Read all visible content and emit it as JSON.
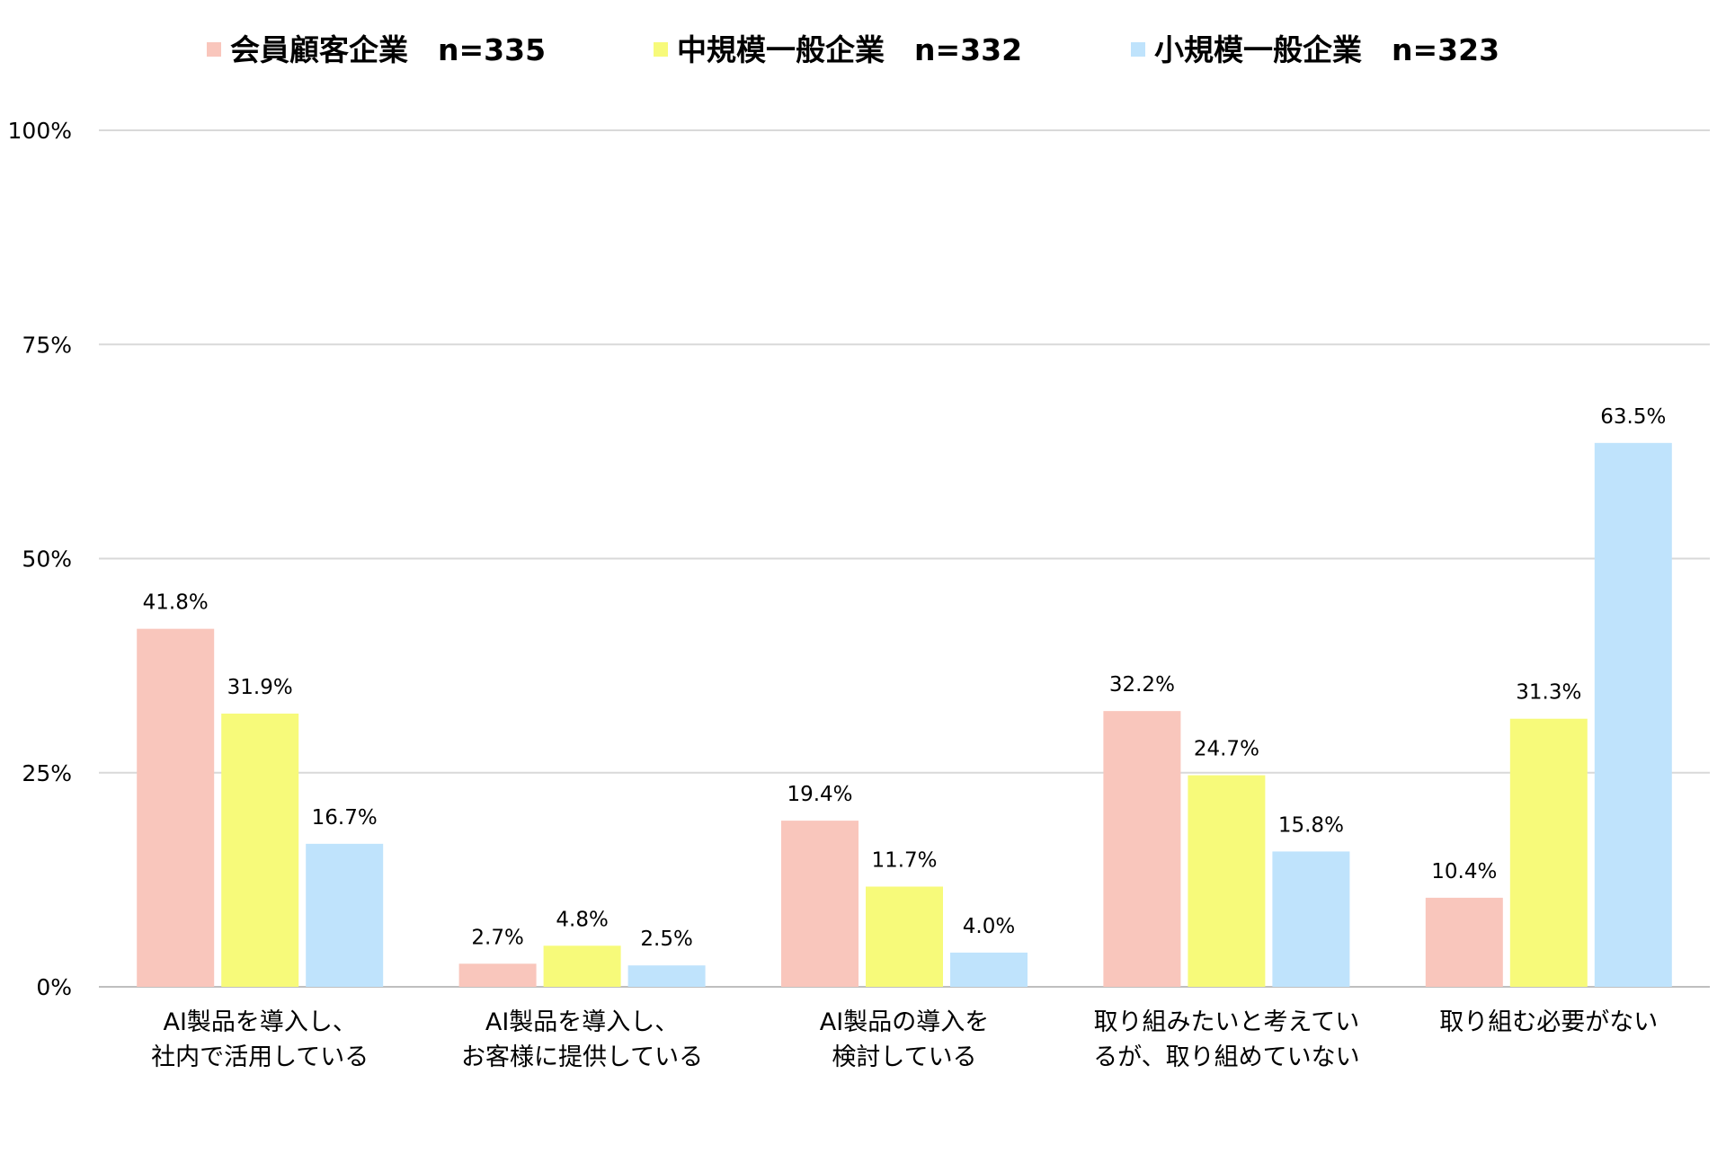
{
  "chart_data": {
    "type": "bar",
    "title": "",
    "xlabel": "",
    "ylabel": "",
    "ylim": [
      0,
      100
    ],
    "yticks": [
      "0%",
      "25%",
      "50%",
      "75%",
      "100%"
    ],
    "ytick_values": [
      0,
      25,
      50,
      75,
      100
    ],
    "grid": true,
    "legend_position": "top-center",
    "categories": [
      [
        "AI製品を導入し、",
        "社内で活用している"
      ],
      [
        "AI製品を導入し、",
        "お客様に提供している"
      ],
      [
        "AI製品の導入を",
        "検討している"
      ],
      [
        "取り組みたいと考えてい",
        "るが、取り組めていない"
      ],
      [
        "取り組む必要がない"
      ]
    ],
    "series": [
      {
        "name": "会員顧客企業　n=335",
        "color": "#F9C6BC",
        "values": [
          41.8,
          2.7,
          19.4,
          32.2,
          10.4
        ],
        "labels": [
          "41.8%",
          "2.7%",
          "19.4%",
          "32.2%",
          "10.4%"
        ]
      },
      {
        "name": "中規模一般企業　n=332",
        "color": "#F7FA7A",
        "values": [
          31.9,
          4.8,
          11.7,
          24.7,
          31.3
        ],
        "labels": [
          "31.9%",
          "4.8%",
          "11.7%",
          "24.7%",
          "31.3%"
        ]
      },
      {
        "name": "小規模一般企業　n=323",
        "color": "#BFE3FC",
        "values": [
          16.7,
          2.5,
          4.0,
          15.8,
          63.5
        ],
        "labels": [
          "16.7%",
          "2.5%",
          "4.0%",
          "15.8%",
          "63.5%"
        ]
      }
    ]
  }
}
